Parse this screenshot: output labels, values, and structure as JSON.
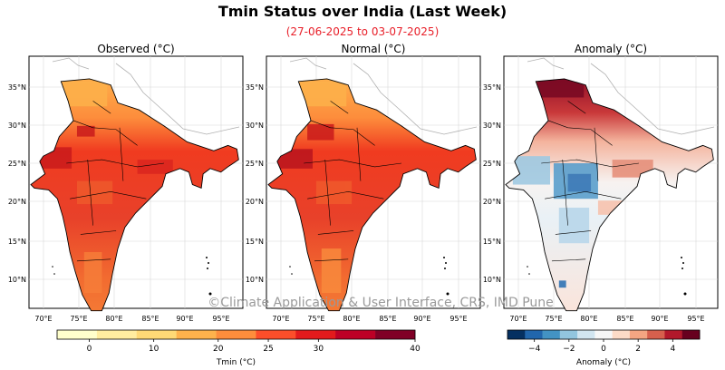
{
  "title": "Tmin Status over India (Last Week)",
  "subtitle": "(27-06-2025 to 03-07-2025)",
  "colors": {
    "subtitle": "#e8202a",
    "map_border": "#000000",
    "grid": "#d0d0d0",
    "land_outline": "#b0b0b0"
  },
  "panels": [
    {
      "title": "Observed (°C)"
    },
    {
      "title": "Normal (°C)"
    },
    {
      "title": "Anomaly (°C)"
    }
  ],
  "lat_ticks": [
    "35°N",
    "30°N",
    "25°N",
    "20°N",
    "15°N",
    "10°N"
  ],
  "lon_ticks": [
    "70°E",
    "75°E",
    "80°E",
    "85°E",
    "90°E",
    "95°E"
  ],
  "watermark": "©Climate Application & User Interface, CRS, IMD Pune",
  "colorbar_tmin": {
    "label": "Tmin (°C)",
    "ticks": [
      "0",
      "10",
      "20",
      "25",
      "30",
      "40"
    ],
    "colors": [
      "#ffffcc",
      "#ffeda0",
      "#fed976",
      "#feb24c",
      "#fd8d3c",
      "#fc4e2a",
      "#e31a1c",
      "#bd0026",
      "#800026"
    ]
  },
  "colorbar_anom": {
    "label": "Anomaly (°C)",
    "ticks": [
      "−4",
      "−2",
      "0",
      "2",
      "4"
    ],
    "colors": [
      "#053061",
      "#2166ac",
      "#4393c3",
      "#92c5de",
      "#d1e5f0",
      "#f7f7f7",
      "#fddbc7",
      "#f4a582",
      "#d6604d",
      "#b2182b",
      "#67001f"
    ]
  }
}
